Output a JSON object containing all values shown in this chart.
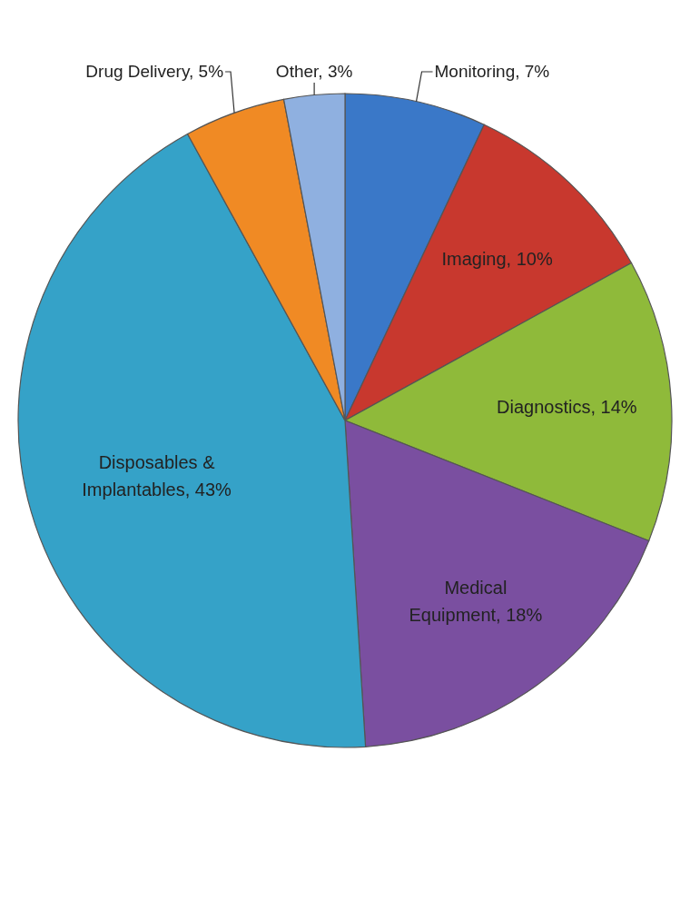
{
  "chart_data": {
    "type": "pie",
    "categories": [
      "Monitoring, 7%",
      "Imaging, 10%",
      "Diagnostics, 14%",
      "Medical Equipment, 18%",
      "Disposables & Implantables, 43%",
      "Drug Delivery, 5%",
      "Other, 3%"
    ],
    "values": [
      7,
      10,
      14,
      18,
      43,
      5,
      3
    ],
    "colors": [
      "#3a78c8",
      "#c8382e",
      "#8fba3a",
      "#7a4fa0",
      "#35a2c8",
      "#f08a24",
      "#8fb0e0"
    ]
  }
}
